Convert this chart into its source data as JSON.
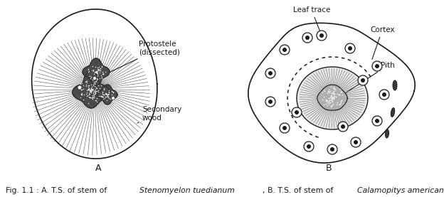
{
  "background_color": "#ffffff",
  "line_color": "#1a1a1a",
  "label_A": "A",
  "label_B": "B",
  "label_protostele": "Protostele\n(dissected)",
  "label_secondary_wood": "Secondary\nwood",
  "label_leaf_trace": "Leaf trace",
  "label_cortex": "Cortex",
  "label_pith": "Pith",
  "fig_caption_parts": [
    [
      "Fig. 1.1 : A. T.S. of stem of ",
      "normal"
    ],
    [
      "Stenomyelon tuedianum",
      "italic"
    ],
    [
      ", B. T.S. of stem of ",
      "normal"
    ],
    [
      "Calamopitys americana",
      "italic"
    ]
  ]
}
